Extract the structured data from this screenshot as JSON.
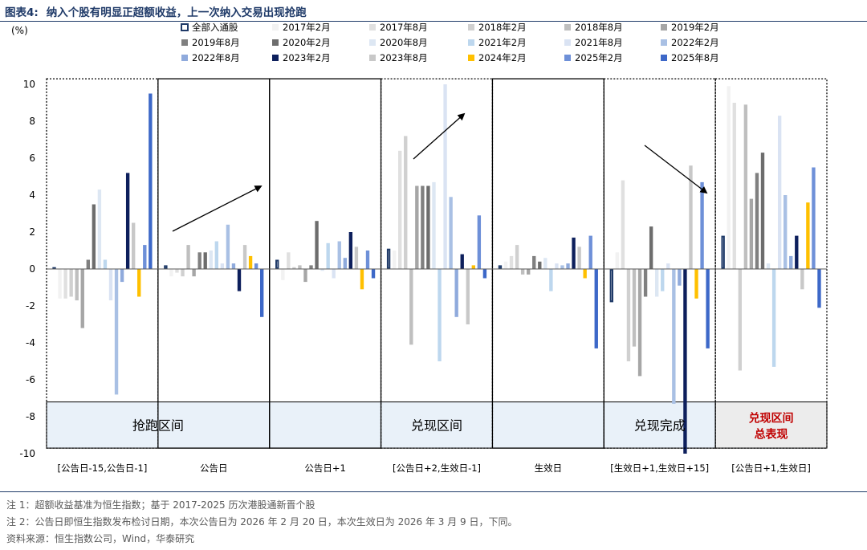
{
  "title": {
    "prefix": "图表4:",
    "text": "纳入个股有明显正超额收益，上一次纳入交易出现抢跑"
  },
  "notes": [
    "注 1：超额收益基准为恒生指数；基于 2017-2025 历次港股通新晋个股",
    "注 2：公告日即恒生指数发布检讨日期，本次公告日为 2026 年 2 月 20 日，本次生效日为 2026 年 3 月 9 日，下同。",
    "资料来源：恒生指数公司，Wind，华泰研究"
  ],
  "chart_data": {
    "type": "bar",
    "ylabel": "(%)",
    "ylim": [
      -10,
      10
    ],
    "yticks": [
      -10,
      -8,
      -6,
      -4,
      -2,
      0,
      2,
      4,
      6,
      8,
      10
    ],
    "grid": false,
    "legend_position": "top",
    "categories": [
      "[公告日-15,公告日-1]",
      "公告日",
      "公告日+1",
      "[公告日+2,生效日-1]",
      "生效日",
      "[生效日+1,生效日+15]",
      "[公告日+1,生效日]"
    ],
    "series": [
      {
        "name": "全部入通股",
        "color": "#1f3a68",
        "style": "hollow",
        "values": [
          0.1,
          0.2,
          0.5,
          1.1,
          0.2,
          -1.8,
          1.8
        ]
      },
      {
        "name": "2017年2月",
        "color": "#f2f2f2",
        "values": [
          -1.6,
          -0.4,
          -0.6,
          1.0,
          0.4,
          0.9,
          9.9
        ]
      },
      {
        "name": "2017年8月",
        "color": "#e0e0e0",
        "values": [
          -1.6,
          -0.2,
          0.9,
          6.4,
          0.7,
          4.8,
          9.0
        ]
      },
      {
        "name": "2018年2月",
        "color": "#d0d0d0",
        "values": [
          -1.5,
          -0.4,
          0.1,
          7.2,
          1.3,
          -5.0,
          -5.5
        ]
      },
      {
        "name": "2018年8月",
        "color": "#bfbfbf",
        "values": [
          -1.7,
          1.3,
          0.2,
          -4.1,
          -0.3,
          -4.2,
          8.9
        ]
      },
      {
        "name": "2019年2月",
        "color": "#a6a6a6",
        "values": [
          -3.2,
          -0.4,
          -0.7,
          4.5,
          -0.3,
          -5.8,
          3.8
        ]
      },
      {
        "name": "2019年8月",
        "color": "#808080",
        "values": [
          0.5,
          0.9,
          0.2,
          4.5,
          0.7,
          -1.5,
          5.2
        ]
      },
      {
        "name": "2020年2月",
        "color": "#6d6d6d",
        "values": [
          3.5,
          0.9,
          2.6,
          4.5,
          0.4,
          2.3,
          6.3
        ]
      },
      {
        "name": "2020年8月",
        "color": "#dde7f3",
        "values": [
          4.3,
          1.0,
          -0.1,
          4.7,
          0.6,
          -1.5,
          0.3
        ]
      },
      {
        "name": "2021年2月",
        "color": "#bdd7ee",
        "values": [
          0.5,
          1.5,
          1.4,
          -5.0,
          -1.2,
          -1.2,
          -5.3
        ]
      },
      {
        "name": "2021年8月",
        "color": "#dae3f3",
        "values": [
          -1.7,
          0.3,
          -0.5,
          10.0,
          0.3,
          0.3,
          8.3
        ]
      },
      {
        "name": "2022年2月",
        "color": "#a9c0e4",
        "values": [
          -6.8,
          2.4,
          1.5,
          3.9,
          0.2,
          -7.3,
          4.0
        ]
      },
      {
        "name": "2022年8月",
        "color": "#8faadc",
        "values": [
          -0.7,
          0.3,
          0.6,
          -2.6,
          0.3,
          -0.9,
          0.7
        ]
      },
      {
        "name": "2023年2月",
        "color": "#0d1f5c",
        "values": [
          5.2,
          -1.2,
          2.0,
          0.8,
          1.7,
          -10.0,
          1.8
        ]
      },
      {
        "name": "2023年8月",
        "color": "#c8c8c8",
        "values": [
          2.5,
          1.3,
          1.2,
          -3.0,
          1.2,
          5.6,
          -1.1
        ]
      },
      {
        "name": "2024年2月",
        "color": "#ffc000",
        "values": [
          -1.5,
          0.7,
          -1.1,
          0.2,
          -0.5,
          -1.6,
          3.6
        ]
      },
      {
        "name": "2025年2月",
        "color": "#6e90d8",
        "values": [
          1.3,
          0.3,
          1.0,
          2.9,
          1.8,
          4.7,
          5.5
        ]
      },
      {
        "name": "2025年8月",
        "color": "#3d68c8",
        "values": [
          9.5,
          -2.6,
          -0.5,
          -0.5,
          -4.3,
          -4.3,
          -2.1
        ]
      }
    ],
    "annotations": [
      {
        "label": "抢跑区间"
      },
      {
        "label": "兑现区间"
      },
      {
        "label": "兑现完成"
      },
      {
        "label": "兑现区间\n总表现",
        "color": "#c00000"
      }
    ]
  }
}
